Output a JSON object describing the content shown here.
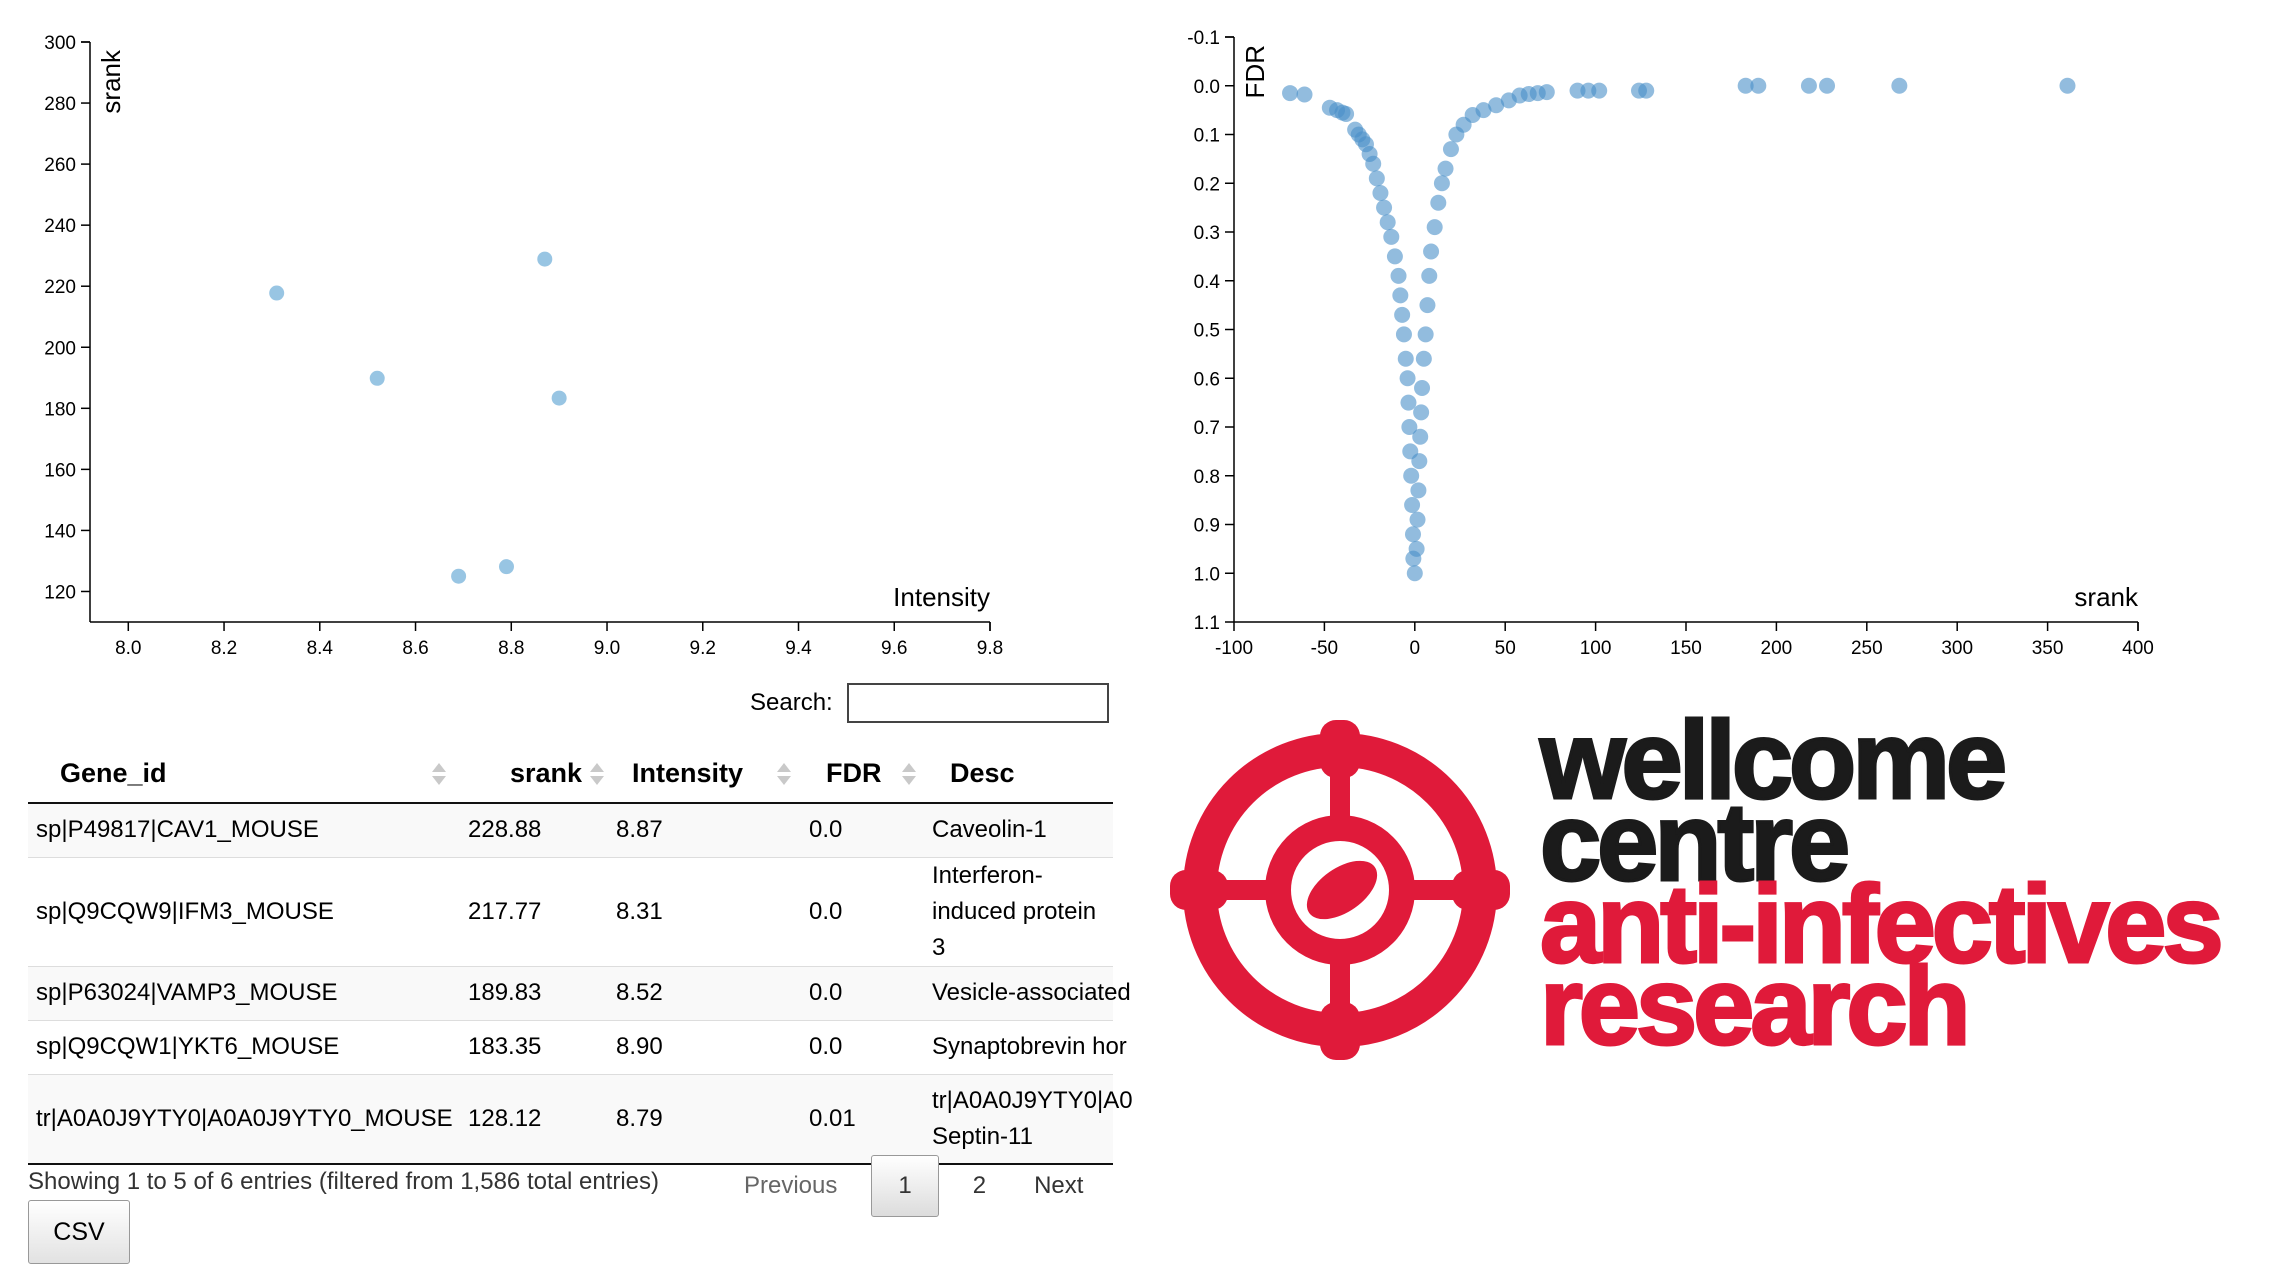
{
  "chart_data": [
    {
      "type": "scatter",
      "xlabel": "Intensity",
      "ylabel": "srank",
      "xlim": [
        7.92,
        9.8
      ],
      "ylim": [
        110,
        300
      ],
      "x_ticks": [
        "8.0",
        "8.2",
        "8.4",
        "8.6",
        "8.8",
        "9.0",
        "9.2",
        "9.4",
        "9.6",
        "9.8"
      ],
      "y_ticks": [
        "120",
        "140",
        "160",
        "180",
        "200",
        "220",
        "240",
        "260",
        "280",
        "300"
      ],
      "color": "#8dbfe0",
      "points": [
        {
          "x": 8.87,
          "y": 228.88
        },
        {
          "x": 8.31,
          "y": 217.77
        },
        {
          "x": 8.52,
          "y": 189.83
        },
        {
          "x": 8.9,
          "y": 183.35
        },
        {
          "x": 8.79,
          "y": 128.12
        },
        {
          "x": 8.69,
          "y": 125.0
        }
      ]
    },
    {
      "type": "scatter",
      "xlabel": "srank",
      "ylabel": "FDR",
      "xlim": [
        -100,
        400
      ],
      "ylim": [
        -0.1,
        1.1
      ],
      "y_inverted": true,
      "x_ticks": [
        "-100",
        "-50",
        "0",
        "50",
        "100",
        "150",
        "200",
        "250",
        "300",
        "350",
        "400"
      ],
      "y_ticks": [
        "-0.1",
        "0.0",
        "0.1",
        "0.2",
        "0.3",
        "0.4",
        "0.5",
        "0.6",
        "0.7",
        "0.8",
        "0.9",
        "1.0",
        "1.1"
      ],
      "color": "#4a90c8",
      "points": [
        {
          "x": -69,
          "y": 0.015
        },
        {
          "x": -61,
          "y": 0.018
        },
        {
          "x": -47,
          "y": 0.045
        },
        {
          "x": -43,
          "y": 0.05
        },
        {
          "x": -40,
          "y": 0.055
        },
        {
          "x": -38,
          "y": 0.058
        },
        {
          "x": -33,
          "y": 0.09
        },
        {
          "x": -31,
          "y": 0.1
        },
        {
          "x": -29,
          "y": 0.11
        },
        {
          "x": -27,
          "y": 0.12
        },
        {
          "x": -25,
          "y": 0.14
        },
        {
          "x": -23,
          "y": 0.16
        },
        {
          "x": -21,
          "y": 0.19
        },
        {
          "x": -19,
          "y": 0.22
        },
        {
          "x": -17,
          "y": 0.25
        },
        {
          "x": -15,
          "y": 0.28
        },
        {
          "x": -13,
          "y": 0.31
        },
        {
          "x": -11,
          "y": 0.35
        },
        {
          "x": -9,
          "y": 0.39
        },
        {
          "x": -8,
          "y": 0.43
        },
        {
          "x": -7,
          "y": 0.47
        },
        {
          "x": -6,
          "y": 0.51
        },
        {
          "x": -5,
          "y": 0.56
        },
        {
          "x": -4,
          "y": 0.6
        },
        {
          "x": -3.5,
          "y": 0.65
        },
        {
          "x": -3,
          "y": 0.7
        },
        {
          "x": -2.5,
          "y": 0.75
        },
        {
          "x": -2,
          "y": 0.8
        },
        {
          "x": -1.5,
          "y": 0.86
        },
        {
          "x": -1,
          "y": 0.92
        },
        {
          "x": -0.8,
          "y": 0.97
        },
        {
          "x": 0,
          "y": 1.0
        },
        {
          "x": 1,
          "y": 0.95
        },
        {
          "x": 1.5,
          "y": 0.89
        },
        {
          "x": 2,
          "y": 0.83
        },
        {
          "x": 2.5,
          "y": 0.77
        },
        {
          "x": 3,
          "y": 0.72
        },
        {
          "x": 3.5,
          "y": 0.67
        },
        {
          "x": 4,
          "y": 0.62
        },
        {
          "x": 5,
          "y": 0.56
        },
        {
          "x": 6,
          "y": 0.51
        },
        {
          "x": 7,
          "y": 0.45
        },
        {
          "x": 8,
          "y": 0.39
        },
        {
          "x": 9,
          "y": 0.34
        },
        {
          "x": 11,
          "y": 0.29
        },
        {
          "x": 13,
          "y": 0.24
        },
        {
          "x": 15,
          "y": 0.2
        },
        {
          "x": 17,
          "y": 0.17
        },
        {
          "x": 20,
          "y": 0.13
        },
        {
          "x": 23,
          "y": 0.1
        },
        {
          "x": 27,
          "y": 0.08
        },
        {
          "x": 32,
          "y": 0.06
        },
        {
          "x": 38,
          "y": 0.05
        },
        {
          "x": 45,
          "y": 0.04
        },
        {
          "x": 52,
          "y": 0.03
        },
        {
          "x": 58,
          "y": 0.02
        },
        {
          "x": 63,
          "y": 0.017
        },
        {
          "x": 68,
          "y": 0.015
        },
        {
          "x": 73,
          "y": 0.013
        },
        {
          "x": 90,
          "y": 0.01
        },
        {
          "x": 96,
          "y": 0.01
        },
        {
          "x": 102,
          "y": 0.01
        },
        {
          "x": 124,
          "y": 0.01
        },
        {
          "x": 128,
          "y": 0.01
        },
        {
          "x": 183,
          "y": 0.0
        },
        {
          "x": 190,
          "y": 0.0
        },
        {
          "x": 218,
          "y": 0.0
        },
        {
          "x": 228,
          "y": 0.0
        },
        {
          "x": 268,
          "y": 0.0
        },
        {
          "x": 361,
          "y": 0.0
        }
      ]
    }
  ],
  "search": {
    "label": "Search:",
    "value": ""
  },
  "table": {
    "columns": [
      "Gene_id",
      "srank",
      "Intensity",
      "FDR",
      "Desc"
    ],
    "rows": [
      {
        "gene_id": "sp|P49817|CAV1_MOUSE",
        "srank": "228.88",
        "intensity": "8.87",
        "fdr": "0.0",
        "desc": "Caveolin-1"
      },
      {
        "gene_id": "sp|Q9CQW9|IFM3_MOUSE",
        "srank": "217.77",
        "intensity": "8.31",
        "fdr": "0.0",
        "desc": "Interferon-induced protein 3"
      },
      {
        "gene_id": "sp|P63024|VAMP3_MOUSE",
        "srank": "189.83",
        "intensity": "8.52",
        "fdr": "0.0",
        "desc": "Vesicle-associated"
      },
      {
        "gene_id": "sp|Q9CQW1|YKT6_MOUSE",
        "srank": "183.35",
        "intensity": "8.90",
        "fdr": "0.0",
        "desc": "Synaptobrevin hor"
      },
      {
        "gene_id": "tr|A0A0J9YTY0|A0A0J9YTY0_MOUSE",
        "srank": "128.12",
        "intensity": "8.79",
        "fdr": "0.01",
        "desc": "tr|A0A0J9YTY0|A0 Septin-11"
      }
    ]
  },
  "footer": {
    "info": "Showing 1 to 5 of 6 entries (filtered from 1,586 total entries)",
    "prev": "Previous",
    "pages": [
      "1",
      "2"
    ],
    "next": "Next",
    "csv": "CSV"
  },
  "logo": {
    "lines": [
      "wellcome",
      "centre",
      "anti-infectives",
      "research"
    ],
    "dark_color": "#1b1b1b",
    "red_color": "#e01a3a"
  }
}
